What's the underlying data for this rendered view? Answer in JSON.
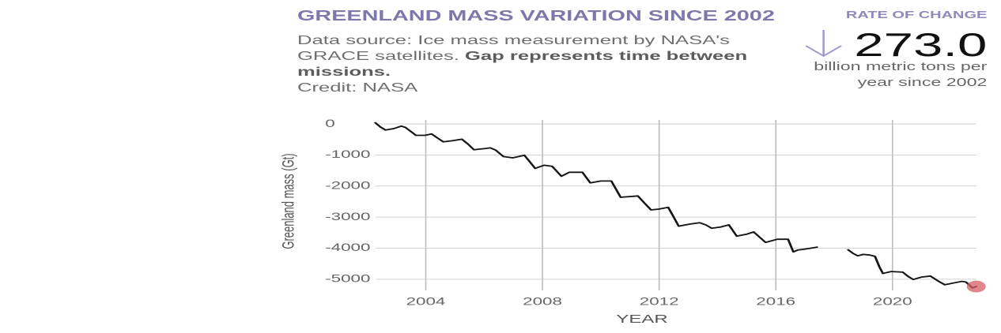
{
  "header": {
    "title": "GREENLAND MASS VARIATION SINCE 2002",
    "description": {
      "source": "Data source: Ice mass measurement by NASA's GRACE satellites.",
      "note": "Gap represents time between missions.",
      "credit": "Credit: NASA"
    }
  },
  "rate_panel": {
    "label": "RATE OF CHANGE",
    "direction_icon": "arrow-down-icon",
    "value": "273.0",
    "unit": "billion metric tons per year since 2002"
  },
  "colors": {
    "title": "#7c78aa",
    "rate_label": "#8e89bb",
    "arrow": "#a09bc9",
    "line": "#151515",
    "highlight_marker": "#d45f63",
    "grid_horizontal": "#d2d2d2",
    "grid_vertical": "#bdbdbd",
    "tick_text": "#666666"
  },
  "chart_data": {
    "type": "line",
    "title": "GREENLAND MASS VARIATION SINCE 2002",
    "xlabel": "YEAR",
    "ylabel": "Greenland mass (Gt)",
    "xlim": [
      2002.28,
      2022.88
    ],
    "ylim": [
      -5360,
      130
    ],
    "grid": true,
    "legend": "none",
    "xticks": [
      2004,
      2008,
      2012,
      2016,
      2020
    ],
    "xtick_labels": [
      "2004",
      "2008",
      "2012",
      "2016",
      "2020"
    ],
    "yticks": [
      0,
      -1000,
      -2000,
      -3000,
      -4000,
      -5000
    ],
    "ytick_labels": [
      "0",
      "-1000",
      "-2000",
      "-3000",
      "-4000",
      "-5000"
    ],
    "series": [
      {
        "name": "Greenland mass (Gt)",
        "segments": [
          {
            "x": [
              2002.27,
              2002.45,
              2002.62,
              2002.9,
              2003.16,
              2003.3,
              2003.5,
              2003.66,
              2003.97,
              2004.2,
              2004.4,
              2004.6,
              2004.9,
              2005.24,
              2005.45,
              2005.65,
              2006.06,
              2006.21,
              2006.39,
              2006.66,
              2006.98,
              2007.38,
              2007.55,
              2007.75,
              2008.06,
              2008.33,
              2008.65,
              2008.92,
              2009.37,
              2009.64,
              2010.0,
              2010.36,
              2010.68,
              2011.27,
              2011.5,
              2011.72,
              2011.99,
              2012.31,
              2012.5,
              2012.67,
              2013.07,
              2013.39,
              2013.6,
              2013.8,
              2014.1,
              2014.39,
              2014.66,
              2015.0,
              2015.24,
              2015.45,
              2015.65,
              2016.05,
              2016.42,
              2016.6,
              2016.75,
              2016.96,
              2017.2,
              2017.41
            ],
            "y": [
              40,
              -100,
              -195,
              -150,
              -68,
              -110,
              -250,
              -364,
              -365,
              -322,
              -450,
              -576,
              -540,
              -490,
              -650,
              -830,
              -787,
              -770,
              -838,
              -1048,
              -1091,
              -1007,
              -1200,
              -1430,
              -1328,
              -1362,
              -1683,
              -1556,
              -1556,
              -1896,
              -1836,
              -1836,
              -2360,
              -2318,
              -2550,
              -2767,
              -2741,
              -2683,
              -3000,
              -3292,
              -3223,
              -3181,
              -3250,
              -3358,
              -3320,
              -3249,
              -3612,
              -3550,
              -3477,
              -3650,
              -3815,
              -3713,
              -3713,
              -4120,
              -4060,
              -4036,
              -4000,
              -3967
            ]
          },
          {
            "x": [
              2018.48,
              2018.65,
              2018.81,
              2019.0,
              2019.22,
              2019.4,
              2019.55,
              2019.67,
              2019.94,
              2020.1,
              2020.35,
              2020.55,
              2020.71,
              2021.0,
              2021.3,
              2021.55,
              2021.79,
              2022.1,
              2022.38,
              2022.52,
              2022.74,
              2022.87
            ],
            "y": [
              -4053,
              -4170,
              -4246,
              -4200,
              -4221,
              -4264,
              -4600,
              -4815,
              -4754,
              -4760,
              -4772,
              -4920,
              -5008,
              -4930,
              -4898,
              -5050,
              -5178,
              -5120,
              -5069,
              -5094,
              -5279,
              -5236
            ]
          }
        ]
      }
    ],
    "highlight_point": {
      "x": 2022.87,
      "y": -5236
    }
  }
}
